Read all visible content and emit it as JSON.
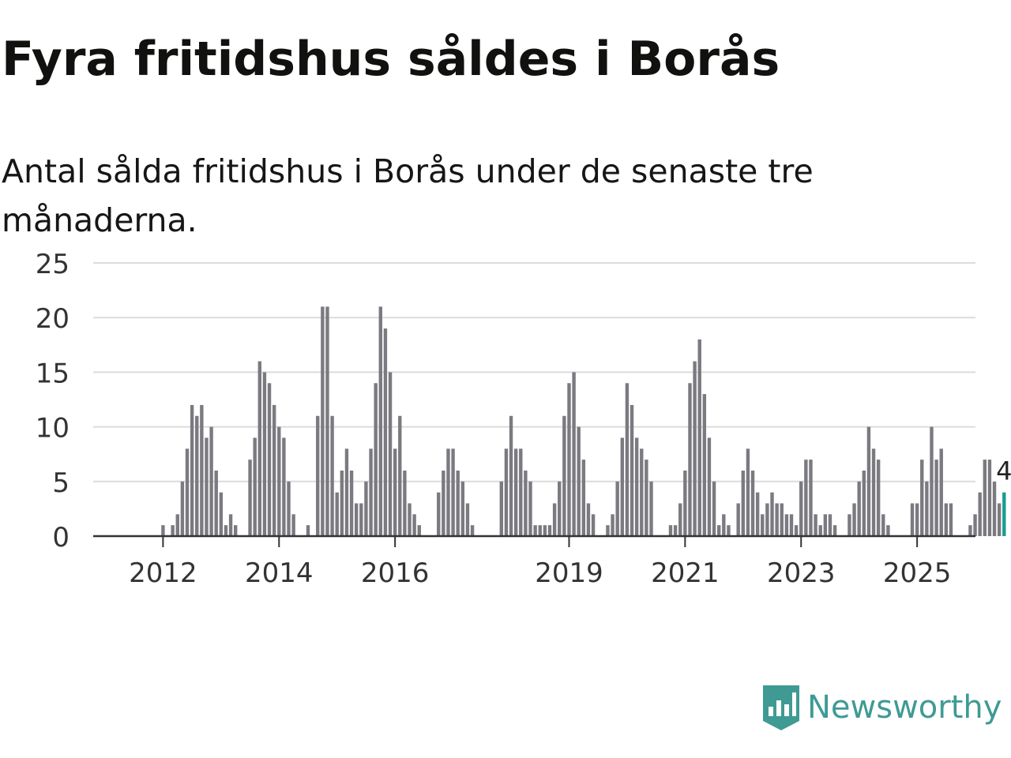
{
  "header": {
    "title": "Fyra fritidshus såldes i Borås",
    "subtitle": "Antal sålda fritidshus i Borås under de senaste tre månaderna."
  },
  "brand": {
    "name": "Newsworthy",
    "icon": "newsworthy-logo-icon"
  },
  "colors": {
    "bar": "#7b7a80",
    "highlight": "#1a9d8f",
    "grid": "#dcdcdc",
    "axis": "#333333",
    "brand": "#3f9a94"
  },
  "chart_data": {
    "type": "bar",
    "title": "Fyra fritidshus såldes i Borås",
    "subtitle": "Antal sålda fritidshus i Borås under de senaste tre månaderna.",
    "xlabel": "",
    "ylabel": "",
    "ylim": [
      0,
      25
    ],
    "yticks": [
      0,
      5,
      10,
      15,
      20,
      25
    ],
    "grid": true,
    "first_period": "2011-03",
    "x_tick_labels": [
      "2012",
      "2014",
      "2016",
      "2019",
      "2021",
      "2023",
      "2025"
    ],
    "x_tick_index": [
      10,
      34,
      58,
      94,
      118,
      142,
      166
    ],
    "highlight_label": "4",
    "values": [
      0,
      0,
      0,
      0,
      0,
      0,
      0,
      0,
      0,
      0,
      1,
      0,
      1,
      2,
      5,
      8,
      12,
      11,
      12,
      9,
      10,
      6,
      4,
      1,
      2,
      1,
      0,
      0,
      7,
      9,
      16,
      15,
      14,
      12,
      10,
      9,
      5,
      2,
      0,
      0,
      1,
      0,
      11,
      21,
      21,
      11,
      4,
      6,
      8,
      6,
      3,
      3,
      5,
      8,
      14,
      21,
      19,
      15,
      8,
      11,
      6,
      3,
      2,
      1,
      0,
      0,
      0,
      4,
      6,
      8,
      8,
      6,
      5,
      3,
      1,
      0,
      0,
      0,
      0,
      0,
      5,
      8,
      11,
      8,
      8,
      6,
      5,
      1,
      1,
      1,
      1,
      3,
      5,
      11,
      14,
      15,
      10,
      7,
      3,
      2,
      0,
      0,
      1,
      2,
      5,
      9,
      14,
      12,
      9,
      8,
      7,
      5,
      0,
      0,
      0,
      1,
      1,
      3,
      6,
      14,
      16,
      18,
      13,
      9,
      5,
      1,
      2,
      1,
      0,
      3,
      6,
      8,
      6,
      4,
      2,
      3,
      4,
      3,
      3,
      2,
      2,
      1,
      5,
      7,
      7,
      2,
      1,
      2,
      2,
      1,
      0,
      0,
      2,
      3,
      5,
      6,
      10,
      8,
      7,
      2,
      1,
      0,
      0,
      0,
      0,
      3,
      3,
      7,
      5,
      10,
      7,
      8,
      3,
      3,
      0,
      0,
      0,
      1,
      2,
      4,
      7,
      7,
      5,
      3,
      4
    ]
  }
}
